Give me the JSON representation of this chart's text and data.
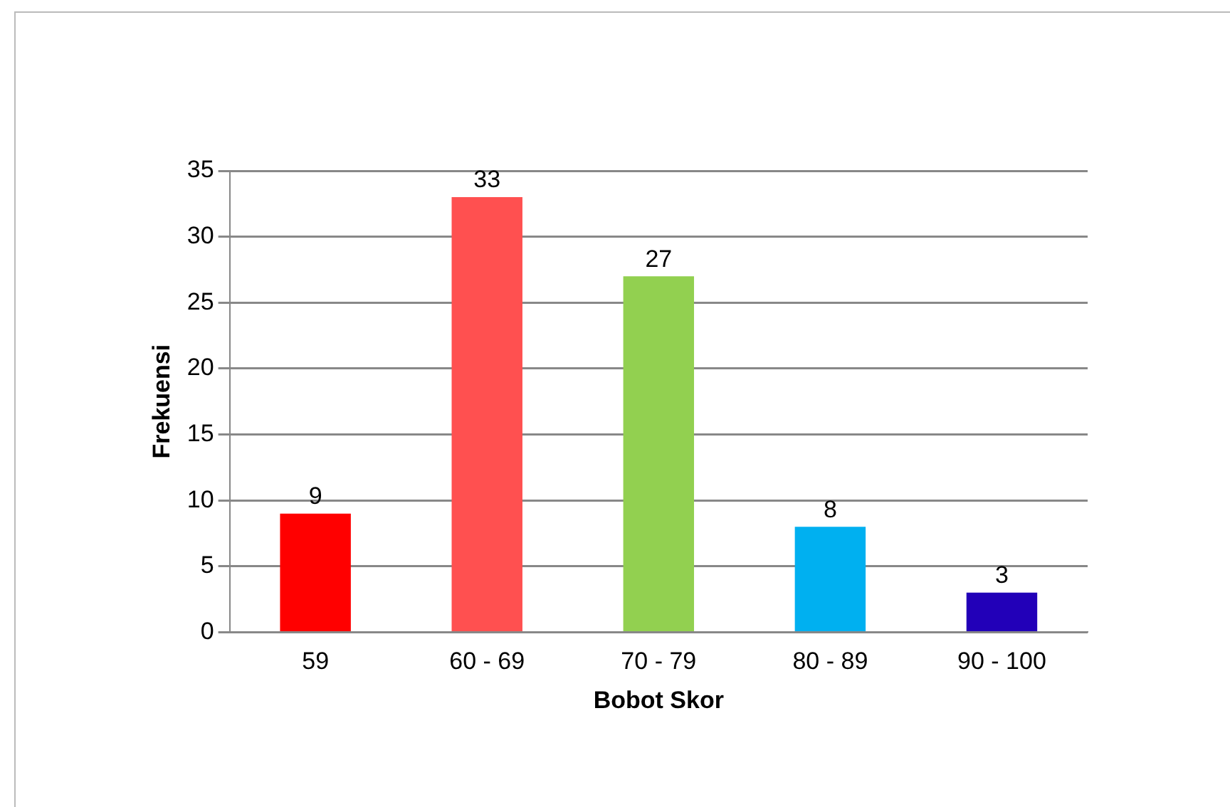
{
  "chart_data": {
    "type": "bar",
    "xlabel": "Bobot Skor",
    "ylabel": "Frekuensi",
    "categories": [
      "59",
      "60 - 69",
      "70 - 79",
      "80 - 89",
      "90 - 100"
    ],
    "values": [
      9,
      33,
      27,
      8,
      3
    ],
    "colors": [
      "#ff0000",
      "#ff5050",
      "#92d050",
      "#00b0f0",
      "#2200b8"
    ],
    "ylim": [
      0,
      35
    ],
    "yticks": [
      0,
      5,
      10,
      15,
      20,
      25,
      30,
      35
    ],
    "grid": "y",
    "legend": false,
    "data_labels": true
  }
}
